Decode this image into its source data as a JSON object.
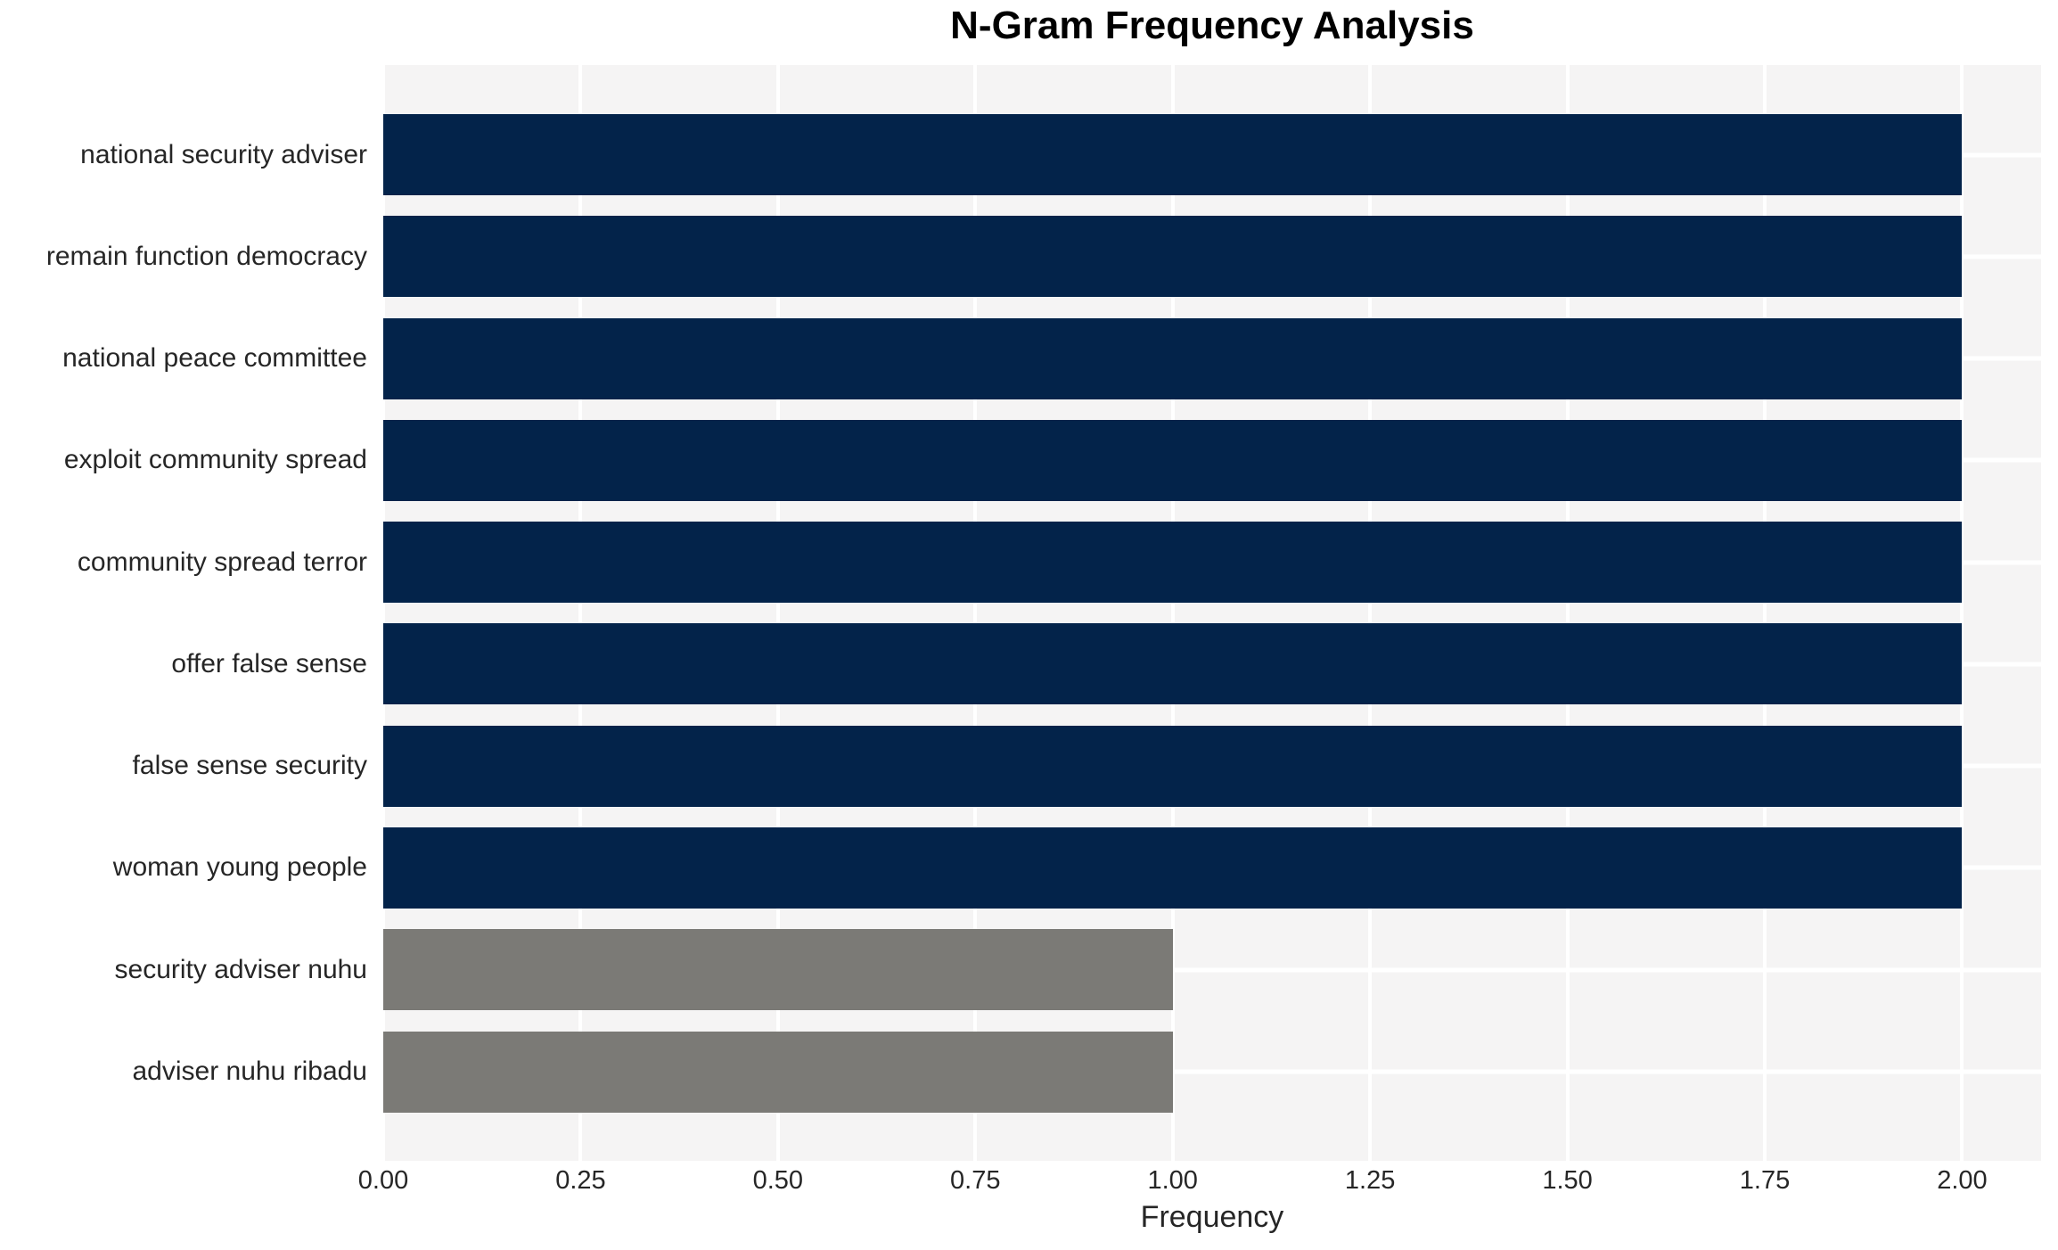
{
  "chart_data": {
    "type": "bar",
    "orientation": "horizontal",
    "title": "N-Gram Frequency Analysis",
    "xlabel": "Frequency",
    "ylabel": "",
    "categories": [
      "national security adviser",
      "remain function democracy",
      "national peace committee",
      "exploit community spread",
      "community spread terror",
      "offer false sense",
      "false sense security",
      "woman young people",
      "security adviser nuhu",
      "adviser nuhu ribadu"
    ],
    "values": [
      2,
      2,
      2,
      2,
      2,
      2,
      2,
      2,
      1,
      1
    ],
    "bar_colors": [
      "#03234a",
      "#03234a",
      "#03234a",
      "#03234a",
      "#03234a",
      "#03234a",
      "#03234a",
      "#03234a",
      "#7b7a76",
      "#7b7a76"
    ],
    "x_tick_labels": [
      "0.00",
      "0.25",
      "0.50",
      "0.75",
      "1.00",
      "1.25",
      "1.50",
      "1.75",
      "2.00"
    ],
    "x_tick_values": [
      0,
      0.25,
      0.5,
      0.75,
      1.0,
      1.25,
      1.5,
      1.75,
      2.0
    ],
    "xlim": [
      0,
      2.1
    ],
    "grid": true,
    "legend": false
  },
  "colors": {
    "bar_high": "#03234a",
    "bar_low": "#7b7a76",
    "plot_background": "#f5f4f4",
    "gridline": "#ffffff",
    "figure_background": "#ffffff",
    "tick_text": "#262626",
    "title_text": "#000000"
  }
}
